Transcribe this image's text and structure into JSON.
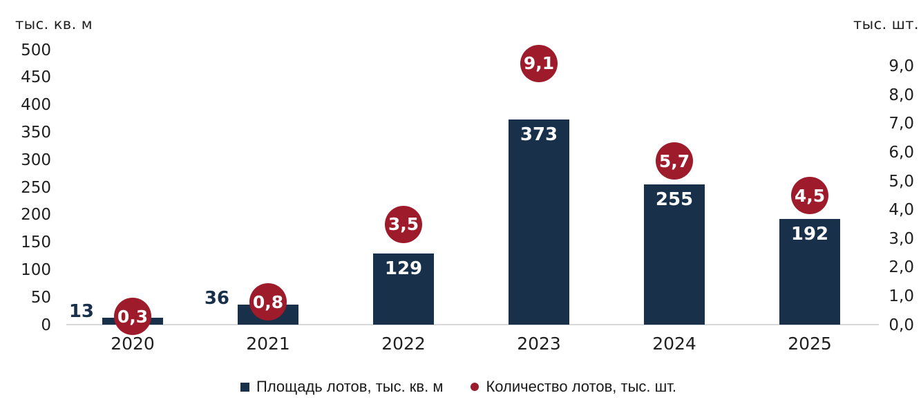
{
  "chart_data": {
    "type": "bar",
    "subtype": "combo-bar-point-dual-axis",
    "categories": [
      "2020",
      "2021",
      "2022",
      "2023",
      "2024",
      "2025"
    ],
    "series": [
      {
        "name": "Площадь лотов, тыс. кв. м",
        "type": "bar",
        "axis": "left",
        "color": "#18304a",
        "values": [
          13,
          36,
          129,
          373,
          255,
          192
        ],
        "value_labels": [
          "13",
          "36",
          "129",
          "373",
          "255",
          "192"
        ]
      },
      {
        "name": "Количество лотов, тыс. шт.",
        "type": "point",
        "axis": "right",
        "color": "#9e1b2b",
        "values": [
          0.3,
          0.8,
          3.5,
          9.1,
          5.7,
          4.5
        ],
        "value_labels": [
          "0,3",
          "0,8",
          "3,5",
          "9,1",
          "5,7",
          "4,5"
        ]
      }
    ],
    "left_axis": {
      "title": "тыс. кв. м",
      "min": 0,
      "max": 500,
      "step": 50,
      "tick_labels": [
        "0",
        "50",
        "100",
        "150",
        "200",
        "250",
        "300",
        "350",
        "400",
        "450",
        "500"
      ]
    },
    "right_axis": {
      "title": "тыс. шт.",
      "min": 0,
      "max": 9,
      "step": 1,
      "tick_labels": [
        "0,0",
        "1,0",
        "2,0",
        "3,0",
        "4,0",
        "5,0",
        "6,0",
        "7,0",
        "8,0",
        "9,0"
      ]
    },
    "legend": [
      {
        "label": "Площадь лотов, тыс. кв. м",
        "marker": "square",
        "color": "#18304a"
      },
      {
        "label": "Количество лотов, тыс. шт.",
        "marker": "dot",
        "color": "#9e1b2b"
      }
    ],
    "grid": false,
    "legend_position": "bottom"
  },
  "colors": {
    "bar": "#18304a",
    "point": "#9e1b2b",
    "axis_line": "#d9d9d9",
    "text": "#1f1f1f",
    "bar_label_inside": "#ffffff",
    "background": "#ffffff"
  }
}
